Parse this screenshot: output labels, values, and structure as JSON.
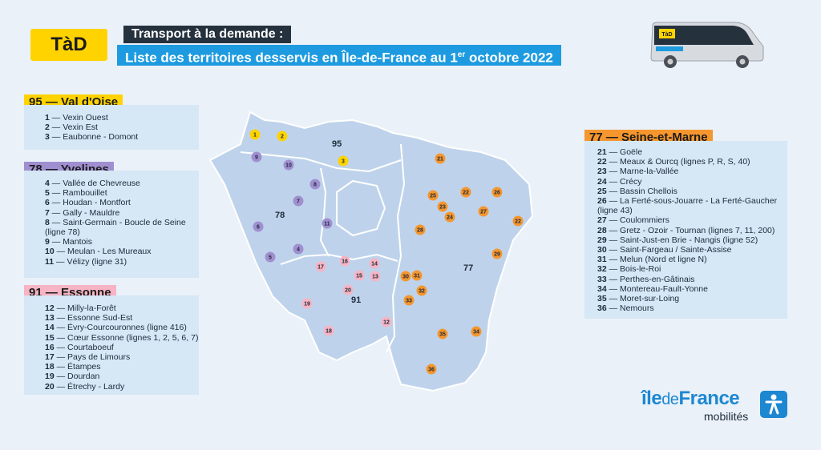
{
  "logo": "TàD",
  "title": {
    "line1": "Transport à la demande :",
    "line2_main": "Liste des territoires desservis en Île-de-France au 1",
    "line2_sup": "er",
    "line2_end": " octobre 2022"
  },
  "bus_logo": "TàD",
  "departments": {
    "d95": {
      "header": "95 — Val d'Oise",
      "color": "#ffd300",
      "items": [
        {
          "num": "1",
          "name": "Vexin Ouest"
        },
        {
          "num": "2",
          "name": "Vexin Est"
        },
        {
          "num": "3",
          "name": "Eaubonne - Domont"
        }
      ]
    },
    "d78": {
      "header": "78 — Yvelines",
      "color": "#a08fd0",
      "items": [
        {
          "num": "4",
          "name": "Vallée de Chevreuse"
        },
        {
          "num": "5",
          "name": "Rambouillet"
        },
        {
          "num": "6",
          "name": "Houdan - Montfort"
        },
        {
          "num": "7",
          "name": "Gally - Mauldre"
        },
        {
          "num": "8",
          "name": "Saint-Germain - Boucle de Seine"
        },
        {
          "num": "",
          "name": "(ligne 78)"
        },
        {
          "num": "9",
          "name": "Mantois"
        },
        {
          "num": "10",
          "name": "Meulan - Les Mureaux"
        },
        {
          "num": "11",
          "name": "Vélizy (ligne 31)"
        }
      ]
    },
    "d91": {
      "header": "91 — Essonne",
      "color": "#f6b4c4",
      "items": [
        {
          "num": "12",
          "name": "Milly-la-Forêt"
        },
        {
          "num": "13",
          "name": "Essonne Sud-Est"
        },
        {
          "num": "14",
          "name": "Évry-Courcouronnes (ligne 416)"
        },
        {
          "num": "15",
          "name": "Cœur Essonne (lignes 1, 2, 5, 6, 7)"
        },
        {
          "num": "16",
          "name": "Courtaboeuf"
        },
        {
          "num": "17",
          "name": "Pays de Limours"
        },
        {
          "num": "18",
          "name": "Étampes"
        },
        {
          "num": "19",
          "name": "Dourdan"
        },
        {
          "num": "20",
          "name": "Étrechy - Lardy"
        }
      ]
    },
    "d77": {
      "header": "77 — Seine-et-Marne",
      "color": "#f5962e",
      "items": [
        {
          "num": "21",
          "name": "Goële"
        },
        {
          "num": "22",
          "name": "Meaux & Ourcq (lignes P, R, S, 40)"
        },
        {
          "num": "23",
          "name": "Marne-la-Vallée"
        },
        {
          "num": "24",
          "name": "Crécy"
        },
        {
          "num": "25",
          "name": "Bassin Chellois"
        },
        {
          "num": "26",
          "name": "La Ferté-sous-Jouarre - La Ferté-Gaucher"
        },
        {
          "num": "",
          "name": "(ligne 43)"
        },
        {
          "num": "27",
          "name": "Coulommiers"
        },
        {
          "num": "28",
          "name": "Gretz - Ozoir - Tournan (lignes 7, 11, 200)"
        },
        {
          "num": "29",
          "name": "Saint-Just-en Brie - Nangis (ligne 52)"
        },
        {
          "num": "30",
          "name": "Saint-Fargeau / Sainte-Assise"
        },
        {
          "num": "31",
          "name": "Melun (Nord et ligne N)"
        },
        {
          "num": "32",
          "name": "Bois-le-Roi"
        },
        {
          "num": "33",
          "name": "Perthes-en-Gâtinais"
        },
        {
          "num": "34",
          "name": "Montereau-Fault-Yonne"
        },
        {
          "num": "35",
          "name": "Moret-sur-Loing"
        },
        {
          "num": "36",
          "name": "Nemours"
        }
      ]
    }
  },
  "map": {
    "dept_labels": [
      "95",
      "78",
      "91",
      "77"
    ],
    "markers": [
      {
        "label": "1",
        "dept": "95"
      },
      {
        "label": "2",
        "dept": "95"
      },
      {
        "label": "3",
        "dept": "95"
      },
      {
        "label": "9",
        "dept": "78"
      },
      {
        "label": "10",
        "dept": "78"
      },
      {
        "label": "8",
        "dept": "78"
      },
      {
        "label": "7",
        "dept": "78"
      },
      {
        "label": "11",
        "dept": "78"
      },
      {
        "label": "6",
        "dept": "78"
      },
      {
        "label": "4",
        "dept": "78"
      },
      {
        "label": "5",
        "dept": "78"
      },
      {
        "label": "17",
        "dept": "91"
      },
      {
        "label": "16",
        "dept": "91"
      },
      {
        "label": "14",
        "dept": "91"
      },
      {
        "label": "15",
        "dept": "91"
      },
      {
        "label": "13",
        "dept": "91"
      },
      {
        "label": "20",
        "dept": "91"
      },
      {
        "label": "19",
        "dept": "91"
      },
      {
        "label": "18",
        "dept": "91"
      },
      {
        "label": "12",
        "dept": "91"
      },
      {
        "label": "21",
        "dept": "77"
      },
      {
        "label": "25",
        "dept": "77"
      },
      {
        "label": "22",
        "dept": "77"
      },
      {
        "label": "26",
        "dept": "77"
      },
      {
        "label": "23",
        "dept": "77"
      },
      {
        "label": "24",
        "dept": "77"
      },
      {
        "label": "27",
        "dept": "77"
      },
      {
        "label": "22",
        "dept": "77"
      },
      {
        "label": "28",
        "dept": "77"
      },
      {
        "label": "29",
        "dept": "77"
      },
      {
        "label": "30",
        "dept": "77"
      },
      {
        "label": "31",
        "dept": "77"
      },
      {
        "label": "32",
        "dept": "77"
      },
      {
        "label": "33",
        "dept": "77"
      },
      {
        "label": "35",
        "dept": "77"
      },
      {
        "label": "34",
        "dept": "77"
      },
      {
        "label": "36",
        "dept": "77"
      }
    ]
  },
  "brand": {
    "name_bold_1": "île",
    "name_light": "de",
    "name_bold_2": "France",
    "sub": "mobilités",
    "icon": "runner-icon"
  }
}
